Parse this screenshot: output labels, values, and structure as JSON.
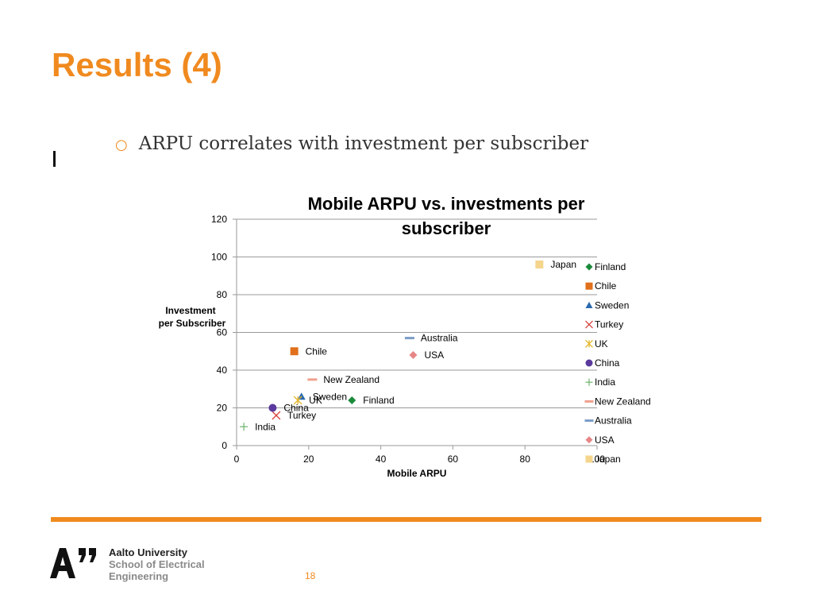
{
  "slide": {
    "title": "Results (4)",
    "bullet": "ARPU correlates with investment per subscriber",
    "page_number": "18"
  },
  "footer": {
    "university_line1": "Aalto University",
    "university_line2": "School of Electrical",
    "university_line3": "Engineering"
  },
  "colors": {
    "accent": "#F08A1F"
  },
  "chart_data": {
    "type": "scatter",
    "title": "Mobile ARPU vs. investments per subscriber",
    "xlabel": "Mobile ARPU",
    "ylabel": "Investment per Subscriber",
    "xlim": [
      0,
      100
    ],
    "ylim": [
      0,
      120
    ],
    "xticks": [
      0,
      20,
      40,
      60,
      80,
      100
    ],
    "yticks": [
      0,
      20,
      40,
      60,
      80,
      100,
      120
    ],
    "grid": "horizontal",
    "legend_position": "right",
    "series": [
      {
        "name": "Finland",
        "x": 32,
        "y": 24,
        "marker": "diamond",
        "color": "#1A8A3A"
      },
      {
        "name": "Chile",
        "x": 16,
        "y": 50,
        "marker": "square",
        "color": "#E0701B"
      },
      {
        "name": "Sweden",
        "x": 18,
        "y": 26,
        "marker": "triangle",
        "color": "#2A6AAE"
      },
      {
        "name": "Turkey",
        "x": 11,
        "y": 16,
        "marker": "x",
        "color": "#D9433B"
      },
      {
        "name": "UK",
        "x": 17,
        "y": 24,
        "marker": "star",
        "color": "#E3B62B"
      },
      {
        "name": "China",
        "x": 10,
        "y": 20,
        "marker": "circle",
        "color": "#5A3A9E"
      },
      {
        "name": "India",
        "x": 2,
        "y": 10,
        "marker": "plus",
        "color": "#6DB36D"
      },
      {
        "name": "New Zealand",
        "x": 21,
        "y": 35,
        "marker": "dash",
        "color": "#F0A08E"
      },
      {
        "name": "Australia",
        "x": 48,
        "y": 57,
        "marker": "dash",
        "color": "#7A9CC8"
      },
      {
        "name": "USA",
        "x": 49,
        "y": 48,
        "marker": "diamond",
        "color": "#E68686"
      },
      {
        "name": "Japan",
        "x": 84,
        "y": 96,
        "marker": "square",
        "color": "#F5D58C"
      }
    ]
  }
}
